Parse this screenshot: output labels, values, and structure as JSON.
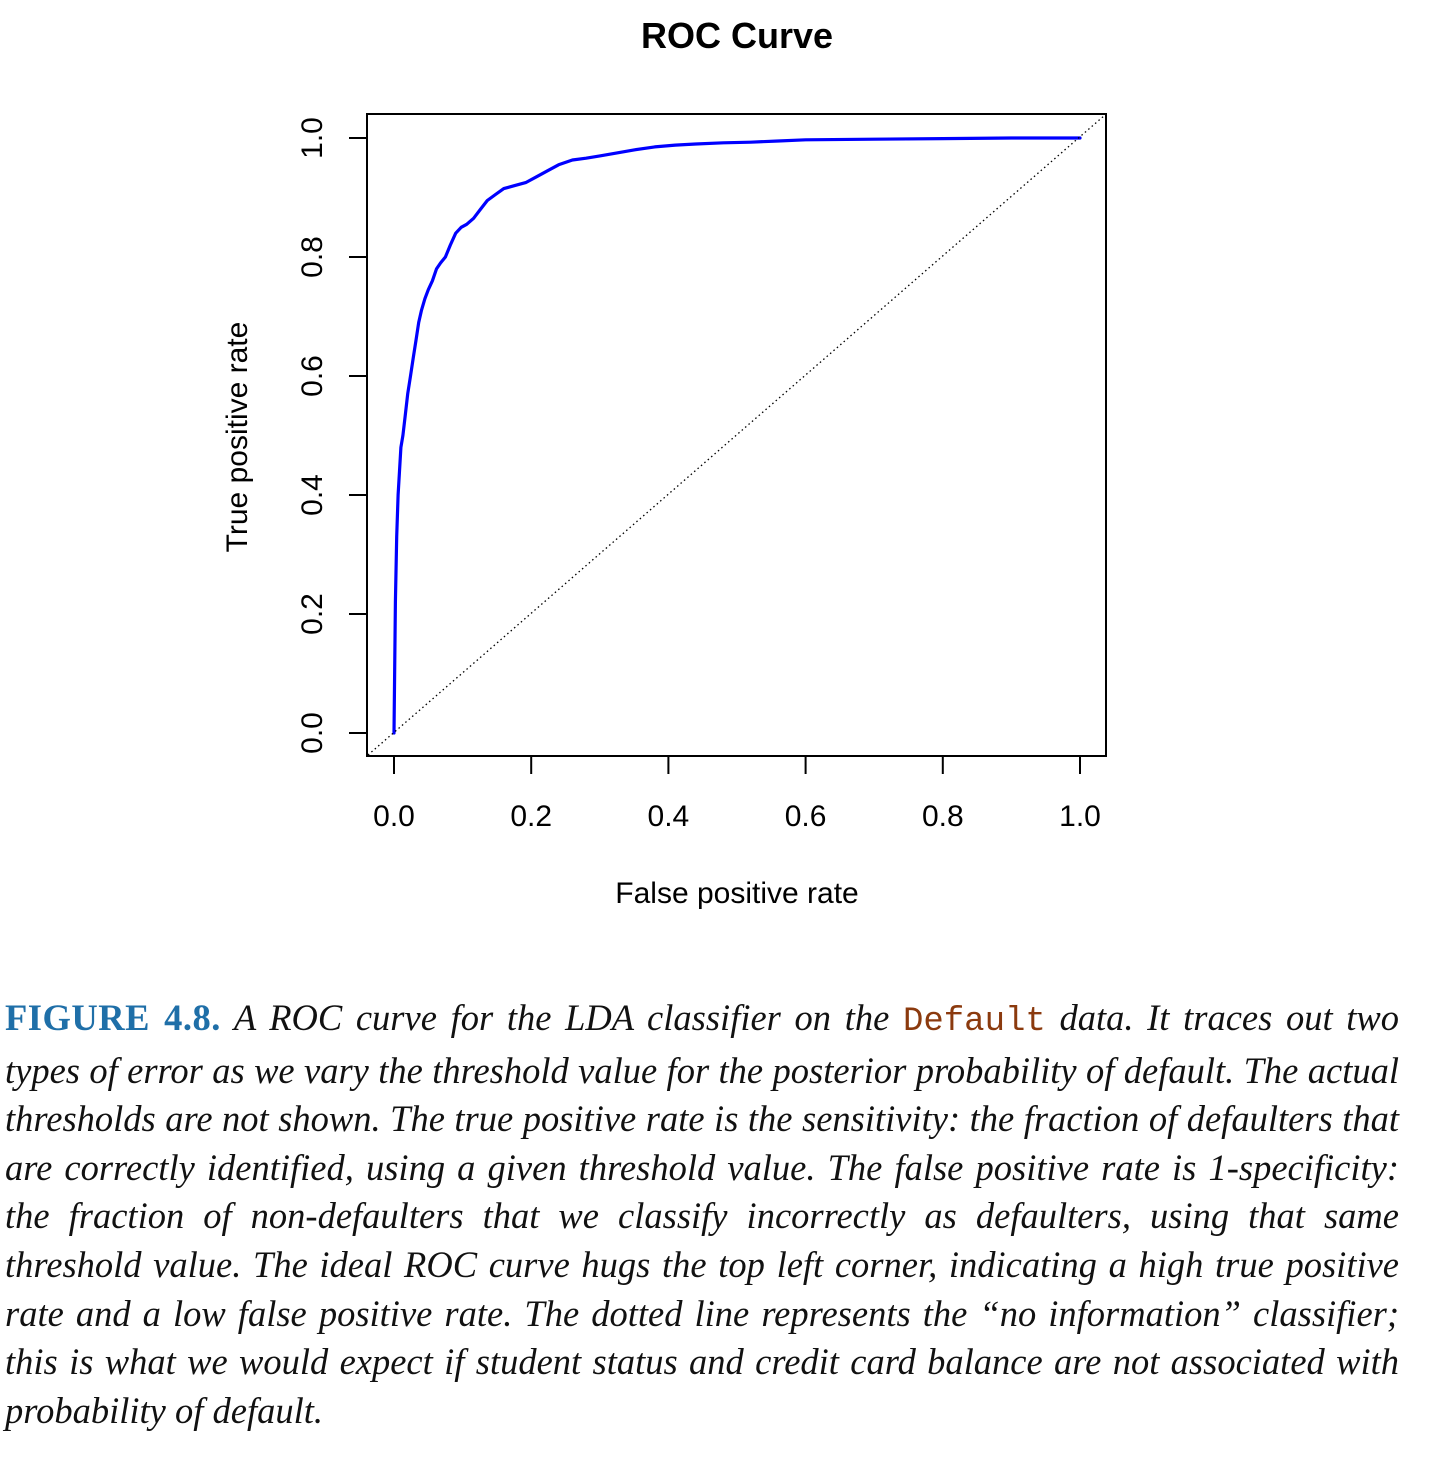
{
  "chart_data": {
    "type": "line",
    "title": "ROC Curve",
    "xlabel": "False positive rate",
    "ylabel": "True positive rate",
    "xlim": [
      0,
      1
    ],
    "ylim": [
      0,
      1
    ],
    "xticks": [
      "0.0",
      "0.2",
      "0.4",
      "0.6",
      "0.8",
      "1.0"
    ],
    "yticks": [
      "0.0",
      "0.2",
      "0.4",
      "0.6",
      "0.8",
      "1.0"
    ],
    "grid": false,
    "series": [
      {
        "color": "#0000ff",
        "style": "solid",
        "x": [
          0.0,
          0.002,
          0.004,
          0.006,
          0.008,
          0.01,
          0.013,
          0.016,
          0.02,
          0.024,
          0.028,
          0.032,
          0.036,
          0.04,
          0.045,
          0.05,
          0.056,
          0.062,
          0.068,
          0.075,
          0.082,
          0.09,
          0.098,
          0.106,
          0.116,
          0.126,
          0.136,
          0.148,
          0.16,
          0.176,
          0.192,
          0.208,
          0.224,
          0.24,
          0.26,
          0.28,
          0.3,
          0.325,
          0.35,
          0.38,
          0.41,
          0.44,
          0.48,
          0.52,
          0.56,
          0.6,
          0.7,
          0.8,
          0.9,
          1.0
        ],
        "y": [
          0.0,
          0.22,
          0.33,
          0.4,
          0.44,
          0.48,
          0.5,
          0.53,
          0.57,
          0.6,
          0.63,
          0.66,
          0.69,
          0.71,
          0.73,
          0.745,
          0.76,
          0.78,
          0.79,
          0.8,
          0.82,
          0.84,
          0.85,
          0.855,
          0.865,
          0.88,
          0.895,
          0.905,
          0.915,
          0.92,
          0.925,
          0.935,
          0.945,
          0.955,
          0.963,
          0.966,
          0.97,
          0.975,
          0.98,
          0.985,
          0.988,
          0.99,
          0.992,
          0.993,
          0.995,
          0.997,
          0.998,
          0.999,
          1.0,
          1.0
        ]
      },
      {
        "color": "#000000",
        "style": "dotted",
        "x": [
          0.0,
          1.0
        ],
        "y": [
          0.0,
          1.0
        ]
      }
    ]
  },
  "caption": {
    "label": "FIGURE 4.8.",
    "text_before": "A ROC curve for the LDA classifier on the",
    "code_word": "Default",
    "text_after": "data. It traces out two types of error as we vary the threshold value for the posterior probability of default. The actual thresholds are not shown. The true positive rate is the sensitivity: the fraction of defaulters that are correctly identified, using a given threshold value. The false positive rate is 1-specificity: the fraction of non-defaulters that we classify incorrectly as defaulters, using that same threshold value. The ideal ROC curve hugs the top left corner, indicating a high true positive rate and a low false positive rate. The dotted line represents the “no information” classifier; this is what we would expect if student status and credit card balance are not associated with probability of default."
  }
}
